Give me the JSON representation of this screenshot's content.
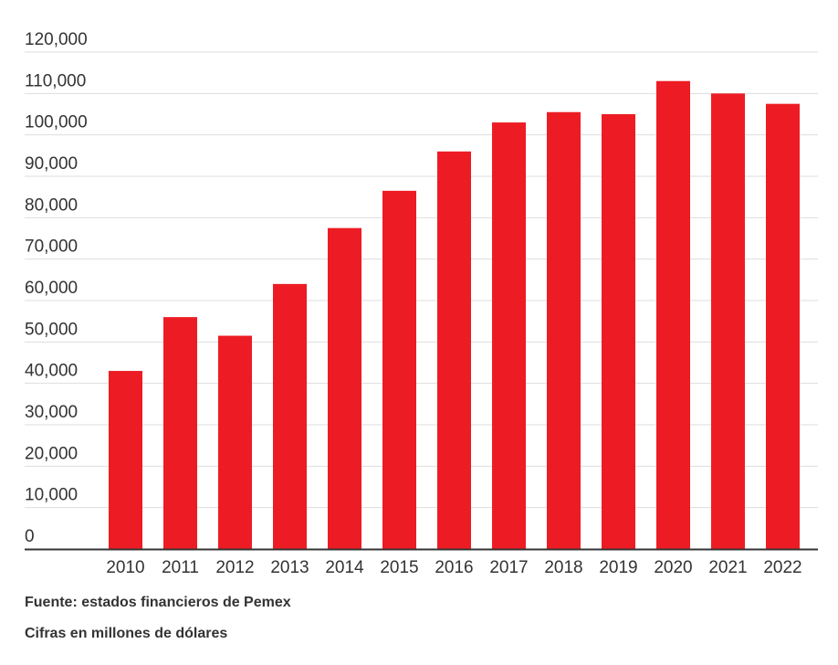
{
  "chart_data": {
    "type": "bar",
    "categories": [
      "2010",
      "2011",
      "2012",
      "2013",
      "2014",
      "2015",
      "2016",
      "2017",
      "2018",
      "2019",
      "2020",
      "2021",
      "2022"
    ],
    "values": [
      43000,
      56000,
      51500,
      64000,
      77500,
      86500,
      96000,
      103000,
      105500,
      105000,
      113000,
      110000,
      107500
    ],
    "ylim": [
      0,
      120000
    ],
    "yticks": [
      0,
      10000,
      20000,
      30000,
      40000,
      50000,
      60000,
      70000,
      80000,
      90000,
      100000,
      110000,
      120000
    ],
    "ytick_labels": [
      "0",
      "10,000",
      "20,000",
      "30,000",
      "40,000",
      "50,000",
      "60,000",
      "70,000",
      "80,000",
      "90,000",
      "100,000",
      "110,000",
      "120,000"
    ],
    "grid": true,
    "bar_color": "#ed1c24",
    "grid_color": "#dddddd",
    "axis_color": "#333333"
  },
  "notes": {
    "source": "Fuente: estados financieros de Pemex",
    "units": "Cifras en millones de dólares"
  }
}
